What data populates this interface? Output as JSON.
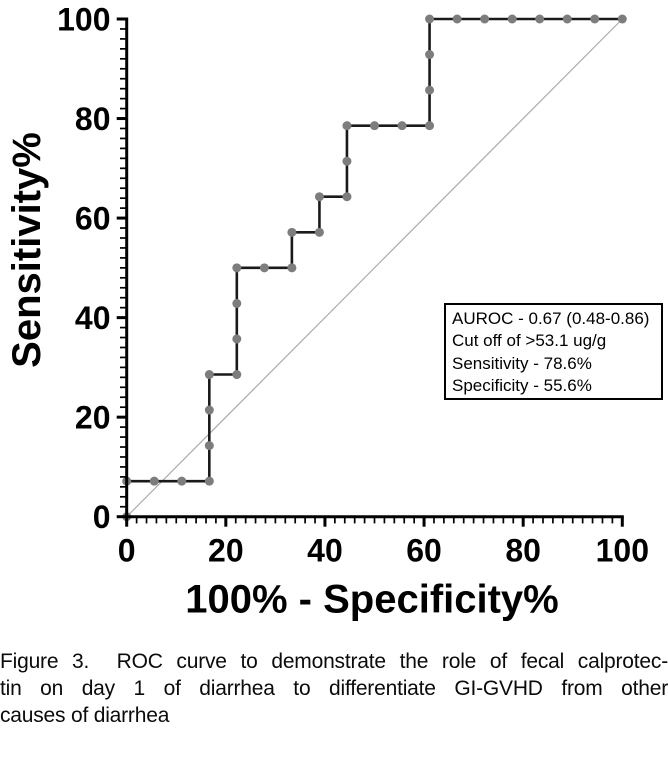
{
  "figure": {
    "background": "#ffffff"
  },
  "chart_data": {
    "type": "line",
    "subtype": "roc-step-curve",
    "title": "",
    "xlabel": "100% - Specificity%",
    "ylabel": "Sensitivity%",
    "xlim": [
      0,
      100
    ],
    "ylim": [
      0,
      100
    ],
    "x_major_ticks": [
      0,
      20,
      40,
      60,
      80,
      100
    ],
    "y_major_ticks": [
      0,
      20,
      40,
      60,
      80,
      100
    ],
    "minor_tick_step": 2,
    "grid": false,
    "legend": "none",
    "series": [
      {
        "name": "ROC curve (fecal calprotectin day 1)",
        "marker": "circle",
        "points": [
          [
            0,
            0
          ],
          [
            0,
            7.14
          ],
          [
            5.56,
            7.14
          ],
          [
            11.11,
            7.14
          ],
          [
            16.67,
            7.14
          ],
          [
            16.67,
            14.29
          ],
          [
            16.67,
            21.43
          ],
          [
            16.67,
            28.57
          ],
          [
            22.22,
            28.57
          ],
          [
            22.22,
            35.71
          ],
          [
            22.22,
            42.86
          ],
          [
            22.22,
            50
          ],
          [
            27.78,
            50
          ],
          [
            33.33,
            50
          ],
          [
            33.33,
            57.14
          ],
          [
            38.89,
            57.14
          ],
          [
            38.89,
            64.29
          ],
          [
            44.44,
            64.29
          ],
          [
            44.44,
            71.43
          ],
          [
            44.44,
            78.57
          ],
          [
            50,
            78.57
          ],
          [
            55.56,
            78.57
          ],
          [
            61.11,
            78.57
          ],
          [
            61.11,
            85.71
          ],
          [
            61.11,
            92.86
          ],
          [
            61.11,
            100
          ],
          [
            66.67,
            100
          ],
          [
            72.22,
            100
          ],
          [
            77.78,
            100
          ],
          [
            83.33,
            100
          ],
          [
            88.89,
            100
          ],
          [
            94.44,
            100
          ],
          [
            100,
            100
          ]
        ]
      },
      {
        "name": "reference diagonal",
        "marker": "none",
        "points": [
          [
            0,
            0
          ],
          [
            100,
            100
          ]
        ]
      }
    ],
    "annotation": {
      "lines": [
        "AUROC - 0.67 (0.48-0.86)",
        "Cut off of >53.1 ug/g",
        "Sensitivity - 78.6%",
        "Specificity - 55.6%"
      ],
      "auroc": 0.67,
      "auroc_ci": "0.48-0.86",
      "cutoff": ">53.1 ug/g",
      "sensitivity_pct": 78.6,
      "specificity_pct": 55.6
    },
    "colors": {
      "curve": "#1a1a1a",
      "marker": "#7d7d7d",
      "diagonal": "#ababab",
      "axis": "#000000",
      "text": "#000000"
    }
  },
  "caption": {
    "lines": [
      "Figure 3.  ROC curve to demonstrate the role of fecal calprotec-",
      "tin on day 1 of diarrhea to differentiate GI-GVHD from other",
      "causes of diarrhea"
    ]
  }
}
